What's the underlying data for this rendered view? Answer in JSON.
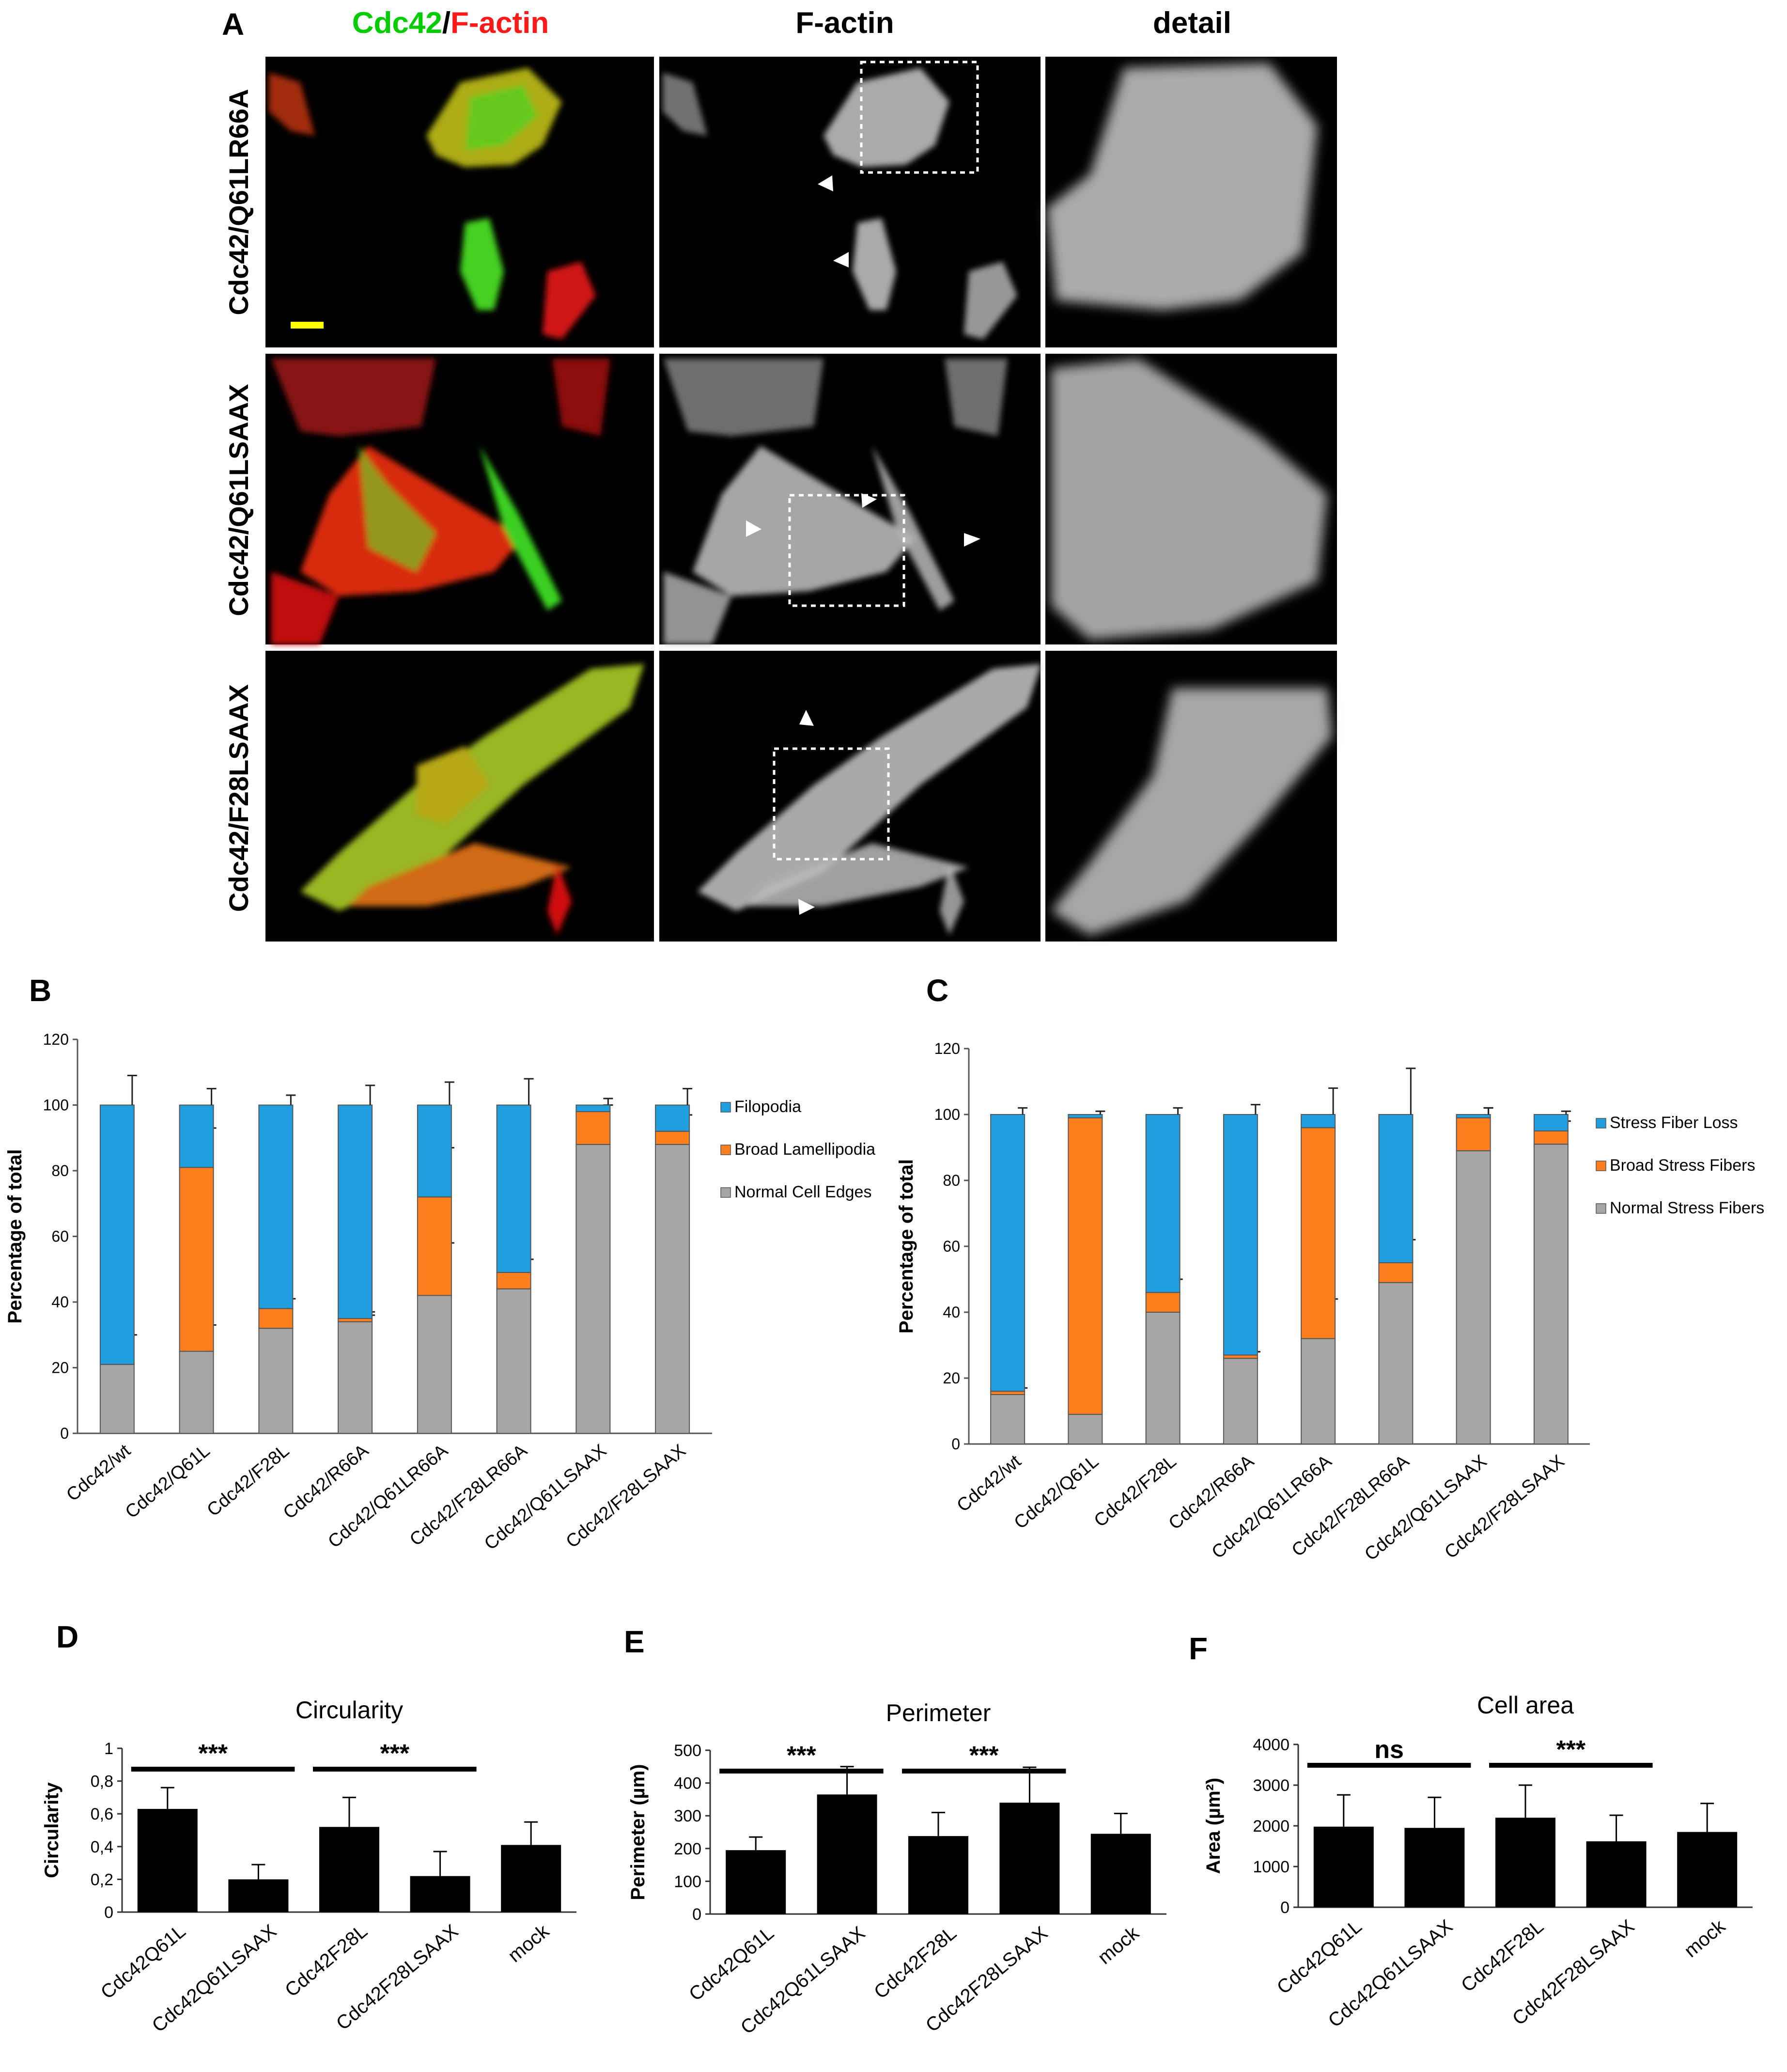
{
  "panelA": {
    "letter": "A",
    "column_headers": {
      "merge_green": "Cdc42",
      "merge_sep": "/",
      "merge_red": "F-actin",
      "factin": "F-actin",
      "detail": "detail"
    },
    "row_labels": [
      "Cdc42/Q61LR66A",
      "Cdc42/Q61LSAAX",
      "Cdc42/F28LSAAX"
    ],
    "colors": {
      "green": "#00d400",
      "red": "#ff2020",
      "scalebar": "#ffff00",
      "bg": "#000000"
    }
  },
  "chart_data": [
    {
      "panel": "B",
      "type": "bar",
      "stacked": true,
      "categories": [
        "Cdc42/wt",
        "Cdc42/Q61L",
        "Cdc42/F28L",
        "Cdc42/R66A",
        "Cdc42/Q61LR66A",
        "Cdc42/F28LR66A",
        "Cdc42/Q61LSAAX",
        "Cdc42/F28LSAAX"
      ],
      "series": [
        {
          "name": "Normal Cell Edges",
          "color": "#a6a6a6",
          "values": [
            21,
            25,
            32,
            34,
            42,
            44,
            88,
            88
          ],
          "err": [
            9,
            8,
            0,
            2,
            16,
            0,
            0,
            0
          ]
        },
        {
          "name": "Broad Lamellipodia",
          "color": "#ff7f1f",
          "values": [
            0,
            56,
            6,
            1,
            30,
            5,
            10,
            4
          ],
          "err": [
            0,
            12,
            3,
            2,
            15,
            4,
            2,
            5
          ]
        },
        {
          "name": "Filopodia",
          "color": "#1f9fdf",
          "values": [
            79,
            19,
            62,
            65,
            28,
            51,
            2,
            8
          ],
          "err": [
            9,
            5,
            3,
            6,
            7,
            8,
            2,
            5
          ]
        }
      ],
      "ylabel": "Percentage of total",
      "ylim": [
        0,
        120
      ],
      "yticks": [
        0,
        20,
        40,
        60,
        80,
        100,
        120
      ],
      "legend": "right"
    },
    {
      "panel": "C",
      "type": "bar",
      "stacked": true,
      "categories": [
        "Cdc42/wt",
        "Cdc42/Q61L",
        "Cdc42/F28L",
        "Cdc42/R66A",
        "Cdc42/Q61LR66A",
        "Cdc42/F28LR66A",
        "Cdc42/Q61LSAAX",
        "Cdc42/F28LSAAX"
      ],
      "series": [
        {
          "name": "Normal Stress Fibers",
          "color": "#a6a6a6",
          "values": [
            15,
            9,
            40,
            26,
            32,
            49,
            89,
            91
          ],
          "err": [
            0,
            0,
            0,
            2,
            12,
            0,
            0,
            0
          ]
        },
        {
          "name": "Broad Stress Fibers",
          "color": "#ff7f1f",
          "values": [
            1,
            90,
            6,
            1,
            64,
            6,
            10,
            4
          ],
          "err": [
            1,
            0,
            4,
            1,
            0,
            7,
            3,
            3
          ]
        },
        {
          "name": "Stress Fiber Loss",
          "color": "#1f9fdf",
          "values": [
            84,
            1,
            54,
            73,
            4,
            45,
            1,
            5
          ],
          "err": [
            2,
            1,
            2,
            3,
            8,
            14,
            2,
            1
          ]
        }
      ],
      "ylabel": "Percentage of total",
      "ylim": [
        0,
        120
      ],
      "yticks": [
        0,
        20,
        40,
        60,
        80,
        100,
        120
      ],
      "legend": "right"
    },
    {
      "panel": "D",
      "type": "bar",
      "title": "Circularity",
      "ylabel": "Circularity",
      "categories": [
        "Cdc42Q61L",
        "Cdc42Q61LSAAX",
        "Cdc42F28L",
        "Cdc42F28LSAAX",
        "mock"
      ],
      "values": [
        0.63,
        0.2,
        0.52,
        0.22,
        0.41
      ],
      "err": [
        0.13,
        0.09,
        0.18,
        0.15,
        0.14
      ],
      "ylim": [
        0,
        1
      ],
      "yticks": [
        0,
        0.2,
        0.4,
        0.6,
        0.8,
        1
      ],
      "ytick_labels": [
        "0",
        "0,2",
        "0,4",
        "0,6",
        "0,8",
        "1"
      ],
      "significance": [
        {
          "from": 0,
          "to": 1,
          "label": "***"
        },
        {
          "from": 2,
          "to": 3,
          "label": "***"
        }
      ]
    },
    {
      "panel": "E",
      "type": "bar",
      "title": "Perimeter",
      "ylabel": "Perimeter (µm)",
      "categories": [
        "Cdc42Q61L",
        "Cdc42Q61LSAAX",
        "Cdc42F28L",
        "Cdc42F28LSAAX",
        "mock"
      ],
      "values": [
        195,
        365,
        238,
        340,
        245
      ],
      "err": [
        40,
        85,
        72,
        108,
        62
      ],
      "ylim": [
        0,
        500
      ],
      "yticks": [
        0,
        100,
        200,
        300,
        400,
        500
      ],
      "ytick_labels": [
        "0",
        "100",
        "200",
        "300",
        "400",
        "500"
      ],
      "significance": [
        {
          "from": 0,
          "to": 1,
          "label": "***"
        },
        {
          "from": 2,
          "to": 3,
          "label": "***"
        }
      ]
    },
    {
      "panel": "F",
      "type": "bar",
      "title": "Cell area",
      "ylabel": "Area (µm²)",
      "categories": [
        "Cdc42Q61L",
        "Cdc42Q61LSAAX",
        "Cdc42F28L",
        "Cdc42F28LSAAX",
        "mock"
      ],
      "values": [
        1980,
        1950,
        2200,
        1620,
        1850
      ],
      "err": [
        780,
        750,
        800,
        640,
        700
      ],
      "ylim": [
        0,
        4000
      ],
      "yticks": [
        0,
        1000,
        2000,
        3000,
        4000
      ],
      "ytick_labels": [
        "0",
        "1000",
        "2000",
        "3000",
        "4000"
      ],
      "significance": [
        {
          "from": 0,
          "to": 1,
          "label": "ns"
        },
        {
          "from": 2,
          "to": 3,
          "label": "***"
        }
      ]
    }
  ]
}
